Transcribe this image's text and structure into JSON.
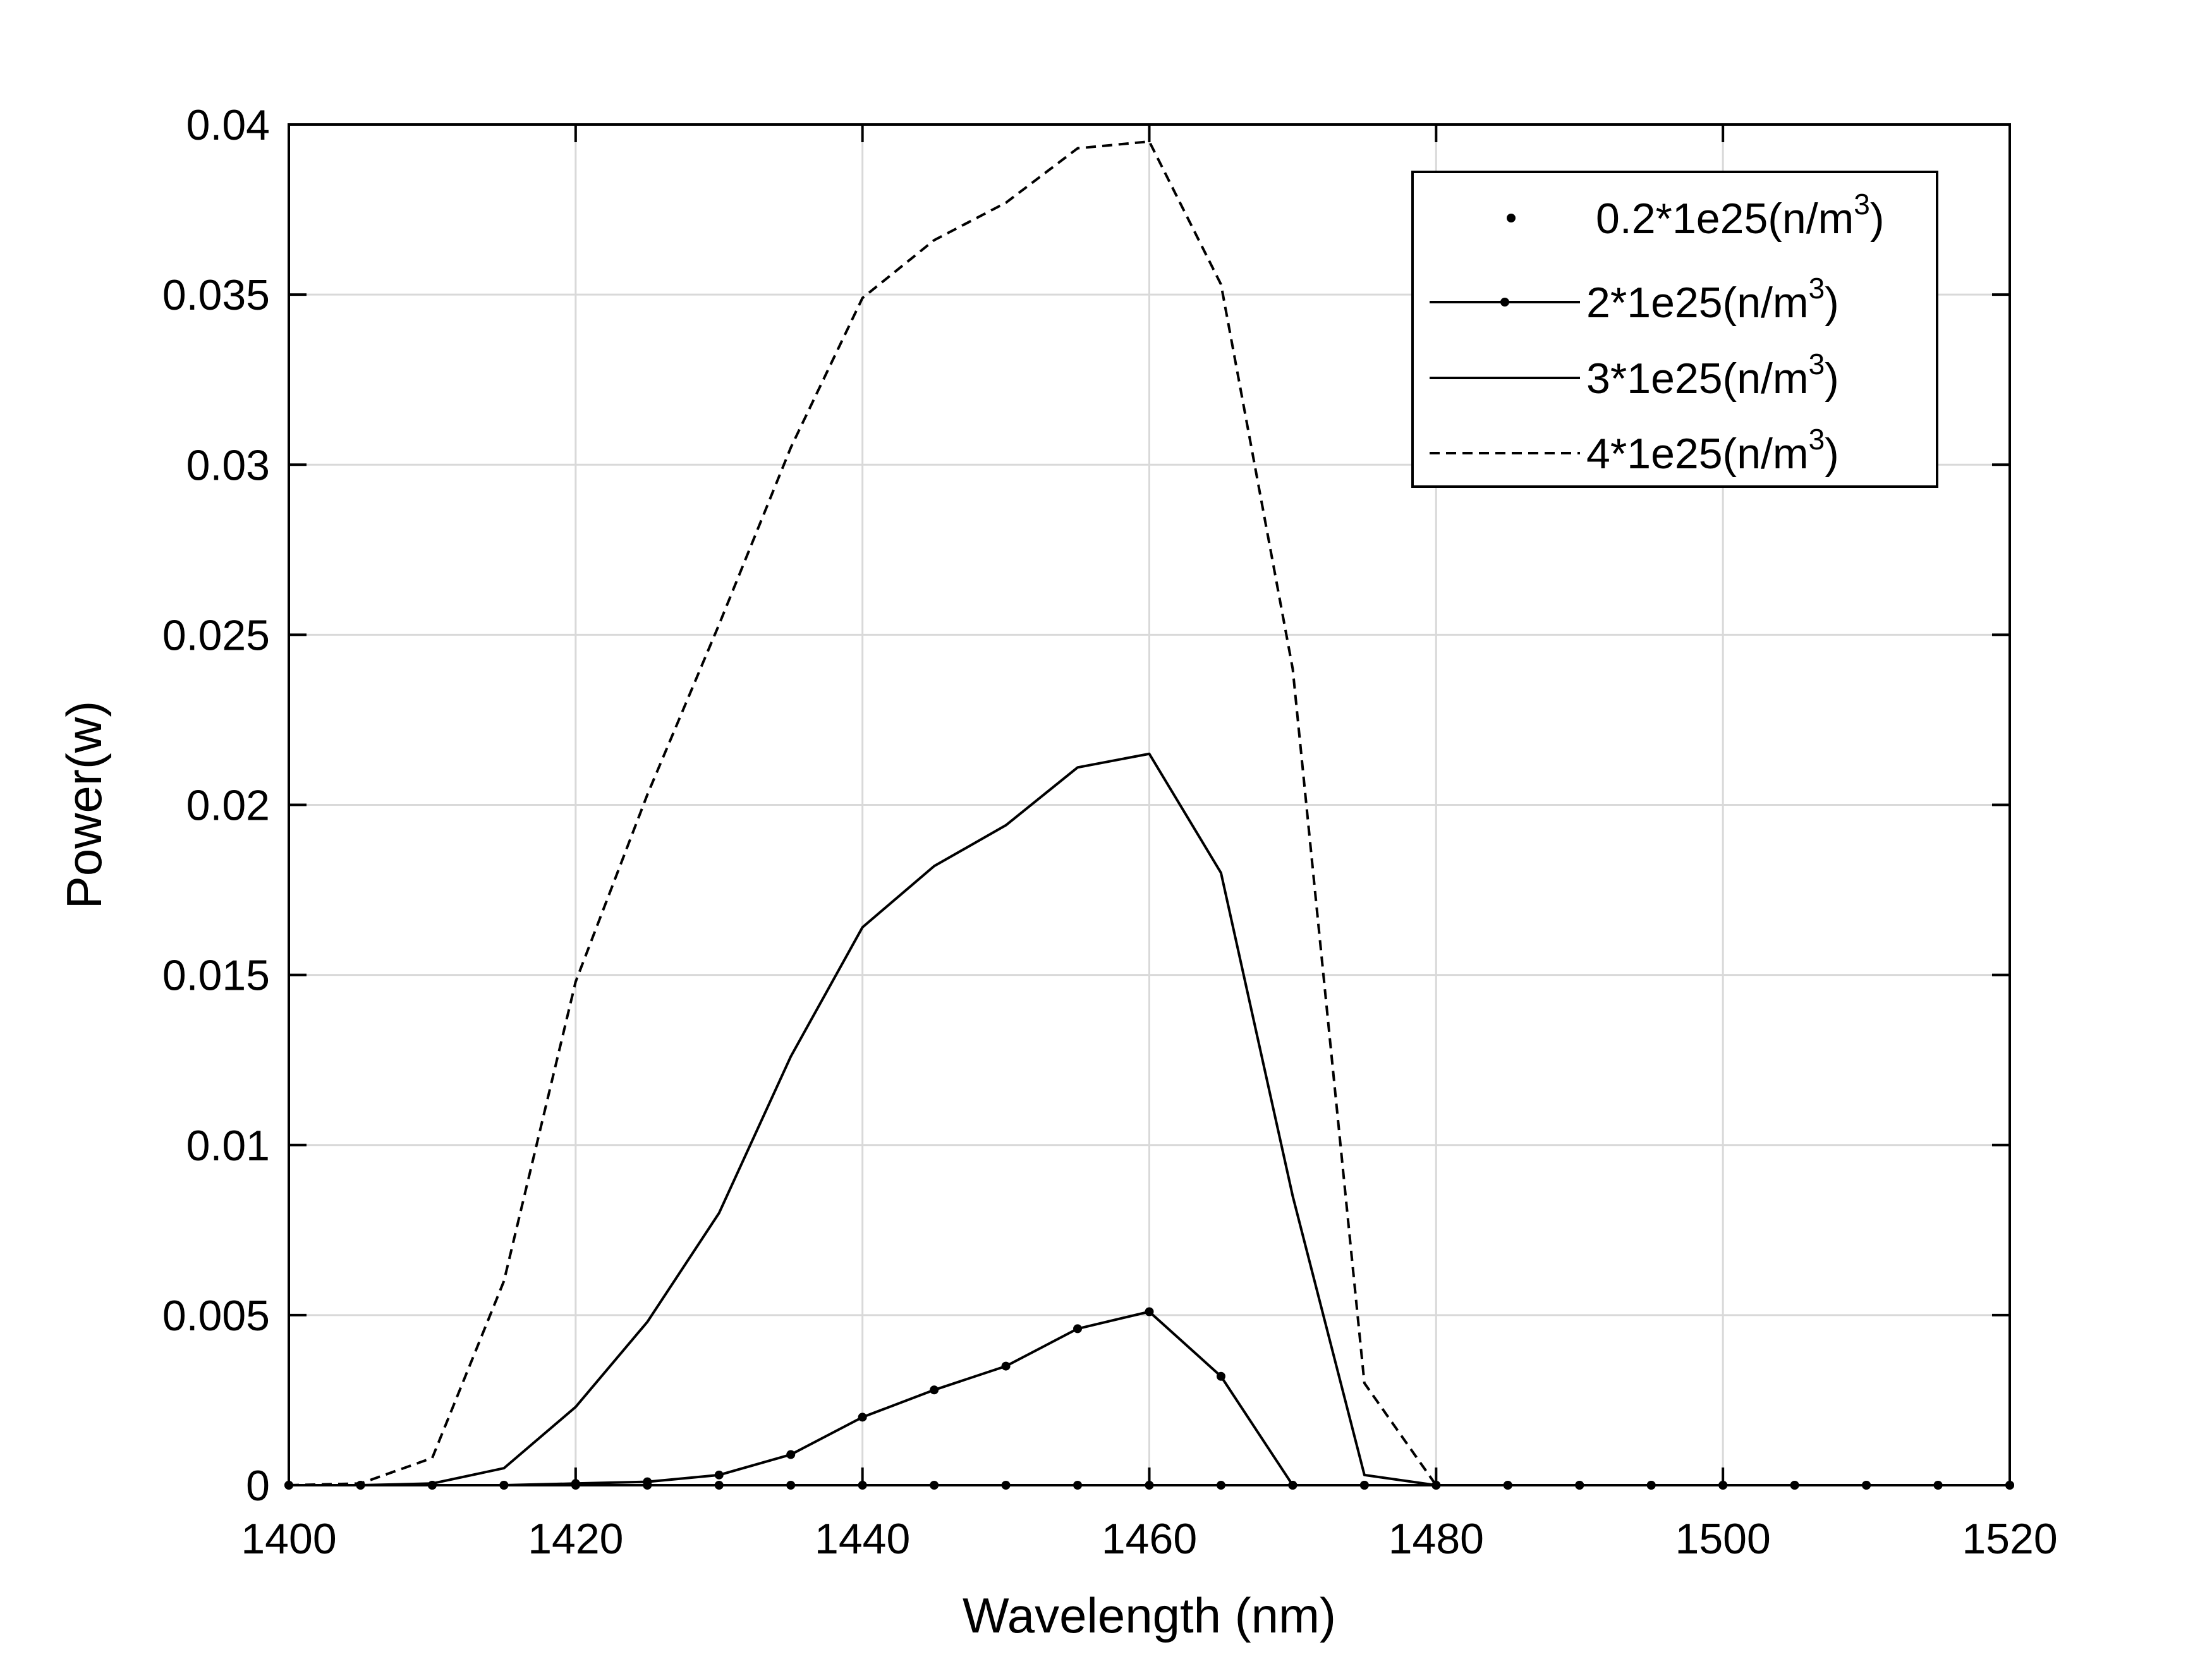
{
  "chart_data": {
    "type": "line",
    "xlabel": "Wavelength (nm)",
    "ylabel": "Power(w)",
    "xlim": [
      1400,
      1520
    ],
    "ylim": [
      0,
      0.04
    ],
    "xticks": [
      1400,
      1420,
      1440,
      1460,
      1480,
      1500,
      1520
    ],
    "xtick_labels": [
      "1400",
      "1420",
      "1440",
      "1460",
      "1480",
      "1500",
      "1520"
    ],
    "yticks": [
      0,
      0.005,
      0.01,
      0.015,
      0.02,
      0.025,
      0.03,
      0.035,
      0.04
    ],
    "ytick_labels": [
      "0",
      "0.005",
      "0.01",
      "0.015",
      "0.02",
      "0.025",
      "0.03",
      "0.035",
      "0.04"
    ],
    "grid": true,
    "legend_position": "top-right",
    "x": [
      1400,
      1405,
      1410,
      1415,
      1420,
      1425,
      1430,
      1435,
      1440,
      1445,
      1450,
      1455,
      1460,
      1465,
      1470,
      1475,
      1480,
      1485,
      1490,
      1495,
      1500,
      1505,
      1510,
      1515,
      1520
    ],
    "series": [
      {
        "name": "0.2*1e25(n/m",
        "name_superscript": "3",
        "name_suffix": ")",
        "style": "markers",
        "values": [
          0,
          0,
          0,
          0,
          0,
          0,
          0,
          0,
          0,
          0,
          0,
          0,
          0,
          0,
          0,
          0,
          0,
          0,
          0,
          0,
          0,
          0,
          0,
          0,
          0
        ]
      },
      {
        "name": "2*1e25(n/m",
        "name_superscript": "3",
        "name_suffix": ")",
        "style": "line-markers",
        "values": [
          0,
          0,
          0,
          0,
          5e-05,
          0.0001,
          0.0003,
          0.0009,
          0.002,
          0.0028,
          0.0035,
          0.0046,
          0.0051,
          0.0032,
          0,
          0,
          0,
          0,
          0,
          0,
          0,
          0,
          0,
          0,
          0
        ]
      },
      {
        "name": "3*1e25(n/m",
        "name_superscript": "3",
        "name_suffix": ")",
        "style": "solid",
        "values": [
          0,
          0,
          5e-05,
          0.0005,
          0.0023,
          0.0048,
          0.008,
          0.0126,
          0.0164,
          0.0182,
          0.0194,
          0.0211,
          0.0215,
          0.018,
          0.0085,
          0.0003,
          0,
          0,
          0,
          0,
          0,
          0,
          0,
          0,
          0
        ]
      },
      {
        "name": "4*1e25(n/m",
        "name_superscript": "3",
        "name_suffix": ")",
        "style": "dashed",
        "values": [
          0,
          5e-05,
          0.0008,
          0.006,
          0.0148,
          0.0203,
          0.0253,
          0.0305,
          0.0349,
          0.0366,
          0.0377,
          0.0393,
          0.0395,
          0.0353,
          0.024,
          0.003,
          0,
          0,
          0,
          0,
          0,
          0,
          0,
          0,
          0
        ]
      }
    ],
    "colors": {
      "line": "#000000",
      "grid": "#d9d9d9",
      "background": "#ffffff"
    }
  }
}
